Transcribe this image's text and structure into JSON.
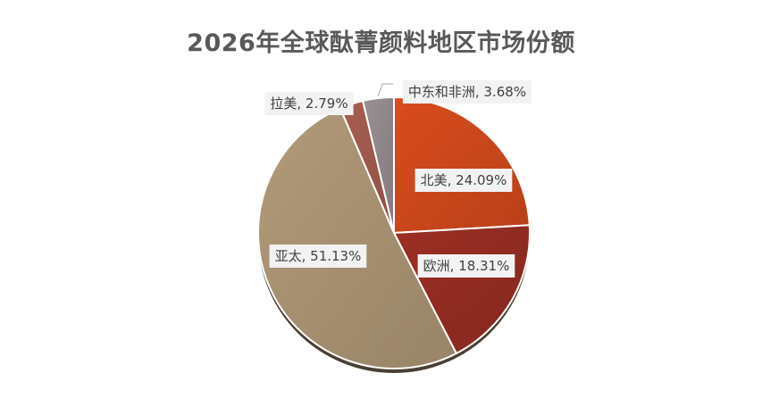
{
  "chart_data": {
    "type": "pie",
    "title": "2026年全球酞菁颜料地区市场份额",
    "slices": [
      {
        "label": "北美",
        "value": 24.09,
        "data_label": "北美, 24.09%",
        "color": "#C9461B"
      },
      {
        "label": "欧洲",
        "value": 18.31,
        "data_label": "欧洲, 18.31%",
        "color": "#902B21"
      },
      {
        "label": "亚太",
        "value": 51.13,
        "data_label": "亚太, 51.13%",
        "color": "#A58F70"
      },
      {
        "label": "拉美",
        "value": 2.79,
        "data_label": "拉美, 2.79%",
        "color": "#9B584A"
      },
      {
        "label": "中东和非洲",
        "value": 3.68,
        "data_label": "中东和非洲, 3.68%",
        "color": "#8E8589"
      }
    ],
    "start_angle_deg": 0,
    "direction": "clockwise",
    "legend": "none"
  }
}
